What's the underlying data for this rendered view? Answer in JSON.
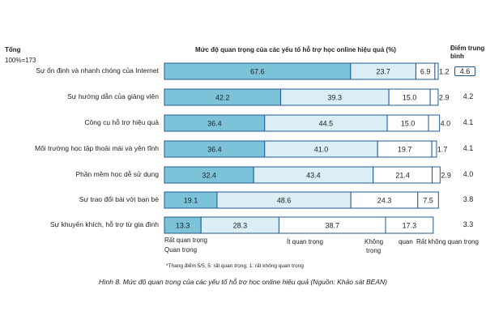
{
  "header": {
    "total_label": "Tổng",
    "total_value": "100%=173",
    "chart_title": "Mức độ quan trọng của các yếu tố hỗ trợ học online hiệu quả (%)",
    "avg_title_line1": "Điểm trung",
    "avg_title_line2": "bình"
  },
  "chart_data": {
    "type": "bar",
    "orientation": "horizontal",
    "stacked": true,
    "title": "Mức độ quan trọng của các yếu tố hỗ trợ học online hiệu quả (%)",
    "categories": [
      "Sự ổn định và nhanh chóng của Internet",
      "Sự hướng dẫn của giảng viên",
      "Công cụ hỗ trợ hiệu quả",
      "Môi trường học tập thoải mái và yên tĩnh",
      "Phần mềm học dễ sử dụng",
      "Sự trao đổi bài với bạn bè",
      "Sự khuyến khích, hỗ trợ từ gia đình"
    ],
    "series": [
      {
        "name": "Rất quan trọng",
        "color": "#7cc2d8",
        "values": [
          67.6,
          42.2,
          36.4,
          36.4,
          32.4,
          19.1,
          13.3
        ]
      },
      {
        "name": "Quan trọng",
        "color": "#dbeef5",
        "values": [
          23.7,
          39.3,
          44.5,
          41.0,
          43.4,
          48.6,
          28.3
        ]
      },
      {
        "name": "Ít quan trọng",
        "color": "#ffffff",
        "values": [
          6.9,
          15.0,
          15.0,
          19.7,
          21.4,
          24.3,
          38.7
        ]
      },
      {
        "name": "Không quan trọng",
        "color": "#ffffff",
        "values": [
          1.2,
          2.9,
          4.0,
          1.7,
          2.9,
          7.5,
          17.3
        ]
      },
      {
        "name": "Rất không quan trọng",
        "color": "#ffffff",
        "values": [
          0,
          0,
          0,
          0,
          0,
          0,
          0
        ]
      }
    ],
    "value_labels": [
      [
        "67.6",
        "23.7",
        "6.9",
        "1.2"
      ],
      [
        "42.2",
        "39.3",
        "15.0",
        "2.9"
      ],
      [
        "36.4",
        "44.5",
        "15.0",
        "4.0"
      ],
      [
        "36.4",
        "41.0",
        "19.7",
        "1.7"
      ],
      [
        "32.4",
        "43.4",
        "21.4",
        "2.9"
      ],
      [
        "19.1",
        "48.6",
        "24.3",
        "7.5"
      ],
      [
        "13.3",
        "28.3",
        "38.7",
        "17.3"
      ]
    ],
    "averages": [
      "4.6",
      "4.2",
      "4.1",
      "4.1",
      "4.0",
      "3.8",
      "3.3"
    ],
    "xlim": [
      0,
      100
    ]
  },
  "legend": {
    "item1": "Rất quan trọng",
    "item2": "Quan trọng",
    "item3": "Ít quan trọng",
    "item4_line1": "Không",
    "item4_line2": "trọng",
    "item4_tail": "quan",
    "item5": "Rất không quan trọng"
  },
  "note": "*Thang điểm 5/5; 5: rất quan trọng; 1: rất không quan trọng",
  "caption": "Hình 8.  Mức độ quan trọng của các yếu tố hỗ trợ học online hiệu quả (Nguồn: Khảo sát BEAN)"
}
